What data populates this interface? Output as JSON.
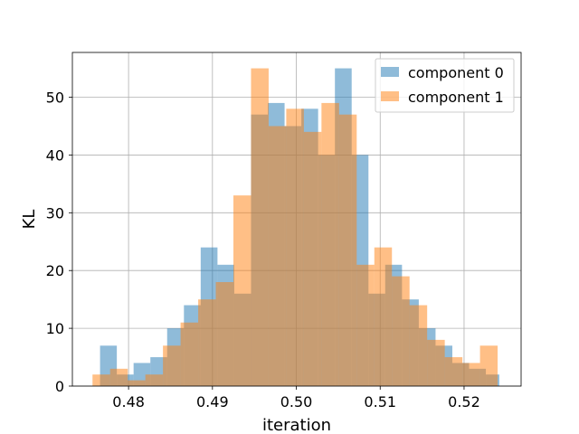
{
  "chart_data": {
    "type": "bar",
    "title": "",
    "xlabel": "iteration",
    "ylabel": "KL",
    "xlim": [
      0.4733,
      0.5268
    ],
    "ylim": [
      0,
      57.75
    ],
    "xticks": [
      "0.48",
      "0.49",
      "0.50",
      "0.51",
      "0.52"
    ],
    "xtick_values": [
      0.48,
      0.49,
      0.5,
      0.51,
      0.52
    ],
    "yticks": [
      "0",
      "10",
      "20",
      "30",
      "40",
      "50"
    ],
    "ytick_values": [
      0,
      10,
      20,
      30,
      40,
      50
    ],
    "grid": true,
    "legend_position": "top-right",
    "series": [
      {
        "name": "component 0",
        "color": "#1f77b4",
        "alpha": 0.5,
        "bin_edges": [
          0.4766,
          0.4786,
          0.4806,
          0.4826,
          0.4846,
          0.4866,
          0.4886,
          0.4906,
          0.4926,
          0.4946,
          0.4966,
          0.4986,
          0.5006,
          0.5026,
          0.5046,
          0.5066,
          0.5086,
          0.5106,
          0.5126,
          0.5146,
          0.5166,
          0.5186,
          0.5206,
          0.5226,
          0.5242
        ],
        "counts": [
          7,
          2,
          4,
          5,
          10,
          14,
          24,
          21,
          16,
          47,
          49,
          45,
          48,
          40,
          55,
          40,
          16,
          21,
          15,
          10,
          7,
          4,
          3,
          2
        ]
      },
      {
        "name": "component 1",
        "color": "#ff7f0e",
        "alpha": 0.5,
        "bin_edges": [
          0.4757,
          0.4778,
          0.4799,
          0.482,
          0.4841,
          0.4862,
          0.4883,
          0.4904,
          0.4925,
          0.4946,
          0.4967,
          0.4988,
          0.5009,
          0.503,
          0.5051,
          0.5072,
          0.5093,
          0.5114,
          0.5135,
          0.5156,
          0.5177,
          0.5198,
          0.5219,
          0.524
        ],
        "counts": [
          2,
          3,
          1,
          2,
          7,
          11,
          15,
          18,
          33,
          55,
          45,
          48,
          44,
          49,
          47,
          21,
          24,
          19,
          14,
          8,
          5,
          4,
          7
        ]
      }
    ]
  }
}
